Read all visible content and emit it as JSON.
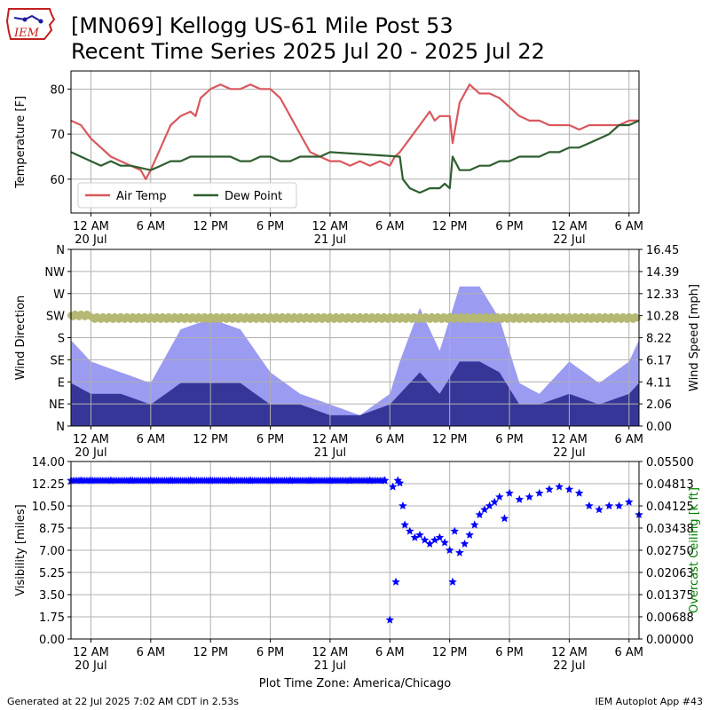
{
  "header": {
    "title_line1": "[MN069] Kellogg US-61 Mile Post 53",
    "title_line2": "Recent Time Series 2025 Jul 20 - 2025 Jul 22",
    "logo_text": "IEM"
  },
  "footer": {
    "generated": "Generated at 22 Jul 2025 7:02 AM CDT in 2.53s",
    "app": "IEM Autoplot App #43",
    "xlabel": "Plot Time Zone: America/Chicago"
  },
  "colors": {
    "air_temp": "#d9585e",
    "dew_point": "#2e5e2e",
    "wind_dir": "#b5b872",
    "wind_speed": "#9b9bf2",
    "wind_gust": "#363699",
    "visibility": "#0000ff",
    "ceiling_label": "#008000"
  },
  "x_axis": {
    "range_hours": [
      -2,
      55
    ],
    "ticks": [
      {
        "h": 0,
        "label": "12 AM",
        "date": "20 Jul"
      },
      {
        "h": 6,
        "label": "6 AM",
        "date": ""
      },
      {
        "h": 12,
        "label": "12 PM",
        "date": ""
      },
      {
        "h": 18,
        "label": "6 PM",
        "date": ""
      },
      {
        "h": 24,
        "label": "12 AM",
        "date": "21 Jul"
      },
      {
        "h": 30,
        "label": "6 AM",
        "date": ""
      },
      {
        "h": 36,
        "label": "12 PM",
        "date": ""
      },
      {
        "h": 42,
        "label": "6 PM",
        "date": ""
      },
      {
        "h": 48,
        "label": "12 AM",
        "date": "22 Jul"
      },
      {
        "h": 54,
        "label": "6 AM",
        "date": ""
      }
    ]
  },
  "chart_data": [
    {
      "type": "line",
      "ylabel": "Temperature [F]",
      "ylim": [
        52.5,
        84
      ],
      "yticks": [
        60,
        70,
        80
      ],
      "grid": true,
      "legend_placement": "lower-left",
      "series": [
        {
          "name": "Air Temp",
          "x": [
            -2,
            -1,
            0,
            1,
            2,
            3,
            4,
            5,
            5.5,
            6,
            7,
            8,
            9,
            10,
            10.5,
            11,
            12,
            13,
            14,
            15,
            16,
            17,
            18,
            19,
            20,
            21,
            22,
            23,
            24,
            25,
            26,
            27,
            28,
            29,
            30,
            30.5,
            31,
            32,
            33,
            34,
            34.5,
            35,
            36,
            36.3,
            37,
            38,
            39,
            40,
            41,
            42,
            43,
            44,
            45,
            46,
            47,
            48,
            49,
            50,
            51,
            52,
            53,
            54,
            55
          ],
          "y": [
            73,
            72,
            69,
            67,
            65,
            64,
            63,
            62,
            60,
            62,
            67,
            72,
            74,
            75,
            74,
            78,
            80,
            81,
            80,
            80,
            81,
            80,
            80,
            78,
            74,
            70,
            66,
            65,
            64,
            64,
            63,
            64,
            63,
            64,
            63,
            65,
            66,
            69,
            72,
            75,
            73,
            74,
            74,
            68,
            77,
            81,
            79,
            79,
            78,
            76,
            74,
            73,
            73,
            72,
            72,
            72,
            71,
            72,
            72,
            72,
            72,
            73,
            73
          ]
        },
        {
          "name": "Dew Point",
          "x": [
            -2,
            -1,
            0,
            1,
            2,
            3,
            4,
            6,
            7,
            8,
            9,
            10,
            11,
            12,
            13,
            14,
            15,
            16,
            17,
            18,
            19,
            20,
            21,
            22,
            23,
            24,
            31,
            31.3,
            32,
            33,
            34,
            35,
            35.5,
            36,
            36.3,
            37,
            38,
            39,
            40,
            41,
            42,
            43,
            44,
            45,
            46,
            47,
            48,
            49,
            50,
            51,
            52,
            53,
            54,
            55
          ],
          "y": [
            66,
            65,
            64,
            63,
            64,
            63,
            63,
            62,
            63,
            64,
            64,
            65,
            65,
            65,
            65,
            65,
            64,
            64,
            65,
            65,
            64,
            64,
            65,
            65,
            65,
            66,
            65,
            60,
            58,
            57,
            58,
            58,
            59,
            58,
            65,
            62,
            62,
            63,
            63,
            64,
            64,
            65,
            65,
            65,
            66,
            66,
            67,
            67,
            68,
            69,
            70,
            72,
            72,
            73
          ]
        }
      ]
    },
    {
      "type": "bar",
      "ylabel": "Wind Direction",
      "y2label": "Wind Speed [mph]",
      "ylim": [
        0,
        360
      ],
      "yticks": [
        {
          "v": 0,
          "label": "N"
        },
        {
          "v": 45,
          "label": "NE"
        },
        {
          "v": 90,
          "label": "E"
        },
        {
          "v": 135,
          "label": "SE"
        },
        {
          "v": 180,
          "label": "S"
        },
        {
          "v": 225,
          "label": "SW"
        },
        {
          "v": 270,
          "label": "W"
        },
        {
          "v": 315,
          "label": "NW"
        },
        {
          "v": 360,
          "label": "N"
        }
      ],
      "y2lim": [
        0,
        16.45
      ],
      "y2ticks": [
        "0.00",
        "2.06",
        "4.11",
        "6.17",
        "8.22",
        "10.28",
        "12.33",
        "14.39",
        "16.45"
      ],
      "grid": true,
      "series": [
        {
          "x": [
            -2,
            0,
            3,
            6,
            9,
            12,
            15,
            18,
            21,
            24,
            27,
            30,
            31,
            33,
            35,
            37,
            39,
            41,
            43,
            45,
            48,
            51,
            54,
            55
          ],
          "values": [
            8,
            6,
            5,
            4,
            9,
            10,
            9,
            5,
            3,
            2,
            1,
            3,
            6,
            11,
            7,
            13,
            13,
            10,
            4,
            3,
            6,
            4,
            6,
            8
          ]
        },
        {
          "x": [
            -2,
            0,
            3,
            6,
            9,
            12,
            15,
            18,
            21,
            24,
            27,
            30,
            31,
            33,
            35,
            37,
            39,
            41,
            43,
            45,
            48,
            51,
            54,
            55
          ],
          "values": [
            4,
            3,
            3,
            2,
            4,
            4,
            4,
            2,
            2,
            1,
            1,
            2,
            3,
            5,
            3,
            6,
            6,
            5,
            2,
            2,
            3,
            2,
            3,
            4
          ]
        },
        {
          "x": [
            -2,
            55
          ],
          "values": [
            220,
            220
          ]
        }
      ]
    },
    {
      "type": "scatter",
      "ylabel": "Visibility [miles]",
      "y2label": "Overcast Ceiling [k ft]",
      "ylim": [
        0,
        14
      ],
      "yticks": [
        "0.00",
        "1.75",
        "3.50",
        "5.25",
        "7.00",
        "8.75",
        "10.50",
        "12.25",
        "14.00"
      ],
      "y2lim": [
        0,
        0.055
      ],
      "y2ticks": [
        "0.00000",
        "0.00688",
        "0.01375",
        "0.02063",
        "0.02750",
        "0.03438",
        "0.04125",
        "0.04813",
        "0.05500"
      ],
      "grid": true,
      "series": [
        {
          "x": [
            -2,
            -1,
            0,
            2,
            4,
            6,
            8,
            10,
            12,
            14,
            16,
            18,
            20,
            22,
            24,
            26,
            28,
            29.5,
            30,
            30.3,
            30.6,
            30.8,
            31,
            31.3,
            31.5,
            32,
            32.5,
            33,
            33.5,
            34,
            34.5,
            35,
            35.5,
            36,
            36.3,
            36.5,
            37,
            37.5,
            38,
            38.5,
            39,
            39.5,
            40,
            40.5,
            41,
            41.5,
            42,
            43,
            44,
            45,
            46,
            47,
            48,
            49,
            50,
            51,
            52,
            53,
            54,
            55
          ],
          "values": [
            12.5,
            12.5,
            12.5,
            12.5,
            12.5,
            12.5,
            12.5,
            12.5,
            12.5,
            12.5,
            12.5,
            12.5,
            12.5,
            12.5,
            12.5,
            12.5,
            12.5,
            12.5,
            1.5,
            12,
            4.5,
            12.5,
            12.3,
            10.5,
            9.0,
            8.5,
            8.0,
            8.2,
            7.8,
            7.5,
            7.8,
            8.0,
            7.6,
            7.0,
            4.5,
            8.5,
            6.8,
            7.5,
            8.2,
            9.0,
            9.8,
            10.2,
            10.5,
            10.8,
            11.2,
            9.5,
            11.5,
            11.0,
            11.2,
            11.5,
            11.8,
            12.0,
            11.8,
            11.5,
            10.5,
            10.2,
            10.5,
            10.5,
            10.8,
            9.8
          ]
        }
      ]
    }
  ]
}
